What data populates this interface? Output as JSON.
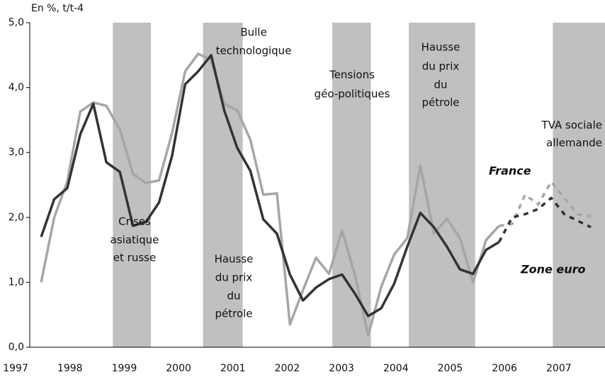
{
  "chart_data": {
    "type": "line",
    "y_axis_label": "En %, t/t-4",
    "x": [
      1997.47,
      1997.71,
      1997.95,
      1998.19,
      1998.43,
      1998.67,
      1998.92,
      1999.16,
      1999.4,
      1999.64,
      1999.88,
      2000.12,
      2000.36,
      2000.6,
      2000.84,
      2001.08,
      2001.32,
      2001.56,
      2001.81,
      2002.05,
      2002.29,
      2002.53,
      2002.77,
      2003.01,
      2003.25,
      2003.49,
      2003.73,
      2003.97,
      2004.21,
      2004.45,
      2004.7,
      2004.94,
      2005.18,
      2005.42,
      2005.66,
      2005.9,
      2006.14,
      2006.38,
      2006.62,
      2006.86,
      2007.1,
      2007.34,
      2007.59
    ],
    "forecast_from": 2005.9,
    "series": [
      {
        "name": "France",
        "color": "#a6a6a6",
        "values": [
          1.0,
          2.0,
          2.55,
          3.63,
          3.77,
          3.72,
          3.35,
          2.67,
          2.53,
          2.57,
          3.3,
          4.25,
          4.52,
          4.43,
          3.75,
          3.65,
          3.2,
          2.35,
          2.37,
          0.35,
          0.88,
          1.38,
          1.13,
          1.8,
          1.1,
          0.18,
          0.93,
          1.43,
          1.68,
          2.8,
          1.75,
          1.98,
          1.68,
          1.0,
          1.65,
          1.87,
          1.9,
          2.35,
          2.2,
          2.55,
          2.3,
          2.05,
          2.02
        ]
      },
      {
        "name": "Zone euro",
        "color": "#333333",
        "values": [
          1.7,
          2.28,
          2.45,
          3.28,
          3.75,
          2.85,
          2.7,
          1.87,
          1.93,
          2.23,
          2.95,
          4.05,
          4.25,
          4.5,
          3.65,
          3.07,
          2.72,
          1.97,
          1.75,
          1.12,
          0.72,
          0.92,
          1.05,
          1.12,
          0.82,
          0.48,
          0.6,
          0.98,
          1.55,
          2.07,
          1.85,
          1.55,
          1.2,
          1.13,
          1.5,
          1.62,
          2.0,
          2.05,
          2.13,
          2.3,
          2.05,
          1.95,
          1.85
        ]
      }
    ],
    "bands": [
      {
        "from": 1998.79,
        "to": 1999.49,
        "label": [
          "Crises",
          "asiatique",
          "et russe"
        ]
      },
      {
        "from": 2000.45,
        "to": 2001.18,
        "label": [
          "Bulle",
          "technologique"
        ],
        "label2": [
          "Hausse",
          "du prix",
          "du",
          "pétrole"
        ]
      },
      {
        "from": 2002.83,
        "to": 2003.54,
        "label": [
          "Tensions",
          "géo-politiques"
        ]
      },
      {
        "from": 2004.24,
        "to": 2005.46,
        "label": [
          "Hausse",
          "du prix",
          "du",
          "pétrole"
        ]
      },
      {
        "from": 2006.89,
        "to": 2007.85,
        "label": [
          "TVA sociale",
          "allemande"
        ]
      }
    ],
    "band_color": "#c0c0c0",
    "xlim": [
      1997.26,
      2007.85
    ],
    "xticks": [
      1997,
      1998,
      1999,
      2000,
      2001,
      2002,
      2003,
      2004,
      2005,
      2006,
      2007
    ],
    "ylim": [
      0,
      5
    ],
    "yticks": [
      {
        "value": 0,
        "label": "0,0"
      },
      {
        "value": 1,
        "label": "1,0"
      },
      {
        "value": 2,
        "label": "2,0"
      },
      {
        "value": 3,
        "label": "3,0"
      },
      {
        "value": 4,
        "label": "4,0"
      },
      {
        "value": 5,
        "label": "5,0"
      }
    ]
  }
}
